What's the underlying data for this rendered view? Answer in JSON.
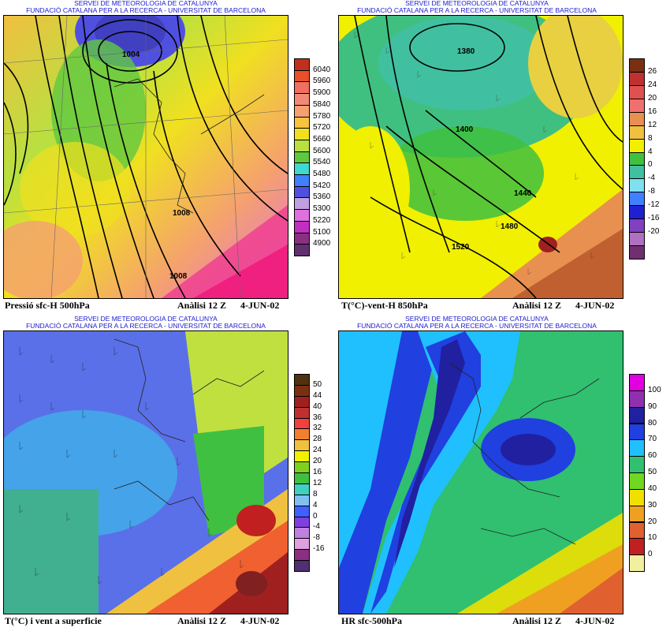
{
  "header": {
    "line1": "SERVEI DE METEOROLOGIA DE CATALUNYA",
    "line2": "FUNDACIÓ CATALANA PER A LA RECERCA - UNIVERSITAT DE BARCELONA"
  },
  "panels": [
    {
      "id": "p1",
      "title_left": "Pressió sfc-H 500hPa",
      "title_mid": "Anàlisi 12 Z",
      "title_right": "4-JUN-02",
      "contour_labels": [
        "1004",
        "1008",
        "1008"
      ],
      "legend": {
        "labels": [
          "6040",
          "5960",
          "5900",
          "5840",
          "5780",
          "5720",
          "5660",
          "5600",
          "5540",
          "5480",
          "5420",
          "5360",
          "5300",
          "5220",
          "5100",
          "4900"
        ],
        "colors": [
          "#c0301c",
          "#e8502a",
          "#f07060",
          "#f08a76",
          "#f5a070",
          "#f8c440",
          "#f0e020",
          "#b8e040",
          "#60c840",
          "#40d8d0",
          "#4080ff",
          "#5050e0",
          "#c0a0e0",
          "#e070e0",
          "#c030c0",
          "#8a3080",
          "#603070"
        ]
      }
    },
    {
      "id": "p2",
      "title_left": "T(°C)-vent-H 850hPa",
      "title_mid": "Anàlisi 12 Z",
      "title_right": "4-JUN-02",
      "contour_labels": [
        "1380",
        "1400",
        "1440",
        "1480",
        "1520"
      ],
      "legend": {
        "labels": [
          "26",
          "24",
          "20",
          "16",
          "12",
          "8",
          "4",
          "0",
          "-4",
          "-8",
          "-12",
          "-16",
          "-20"
        ],
        "colors": [
          "#7a3010",
          "#c03030",
          "#e05050",
          "#f07070",
          "#e89050",
          "#f0c040",
          "#f0f000",
          "#40c040",
          "#40c0a0",
          "#80e0f0",
          "#4080ff",
          "#2020d0",
          "#8040c0",
          "#b070c0",
          "#703070"
        ]
      }
    },
    {
      "id": "p3",
      "title_left": "T(°C) i vent a superficie",
      "title_mid": "Anàlisi 12 Z",
      "title_right": "4-JUN-02",
      "contour_labels": [],
      "legend": {
        "labels": [
          "50",
          "44",
          "40",
          "36",
          "32",
          "28",
          "24",
          "20",
          "16",
          "12",
          "8",
          "4",
          "0",
          "-4",
          "-8",
          "-16"
        ],
        "colors": [
          "#503010",
          "#7a3010",
          "#a02020",
          "#c03030",
          "#f04040",
          "#f08030",
          "#f0c040",
          "#f0f000",
          "#80d020",
          "#40c040",
          "#40d0c0",
          "#80c0f0",
          "#4060ff",
          "#8040e0",
          "#c080e0",
          "#e0a0e0",
          "#8a3080",
          "#503070"
        ]
      }
    },
    {
      "id": "p4",
      "title_left": "HR sfc-500hPa",
      "title_mid": "Anàlisi 12 Z",
      "title_right": "4-JUN-02",
      "contour_labels": [],
      "legend": {
        "labels": [
          "100",
          "90",
          "80",
          "70",
          "60",
          "50",
          "40",
          "30",
          "20",
          "10",
          "0"
        ],
        "colors": [
          "#e000e0",
          "#9030b0",
          "#2020a0",
          "#2040e0",
          "#20c0ff",
          "#30c070",
          "#70d820",
          "#f0e000",
          "#f0a020",
          "#e06030",
          "#c02020",
          "#f0f0a0"
        ]
      }
    }
  ]
}
